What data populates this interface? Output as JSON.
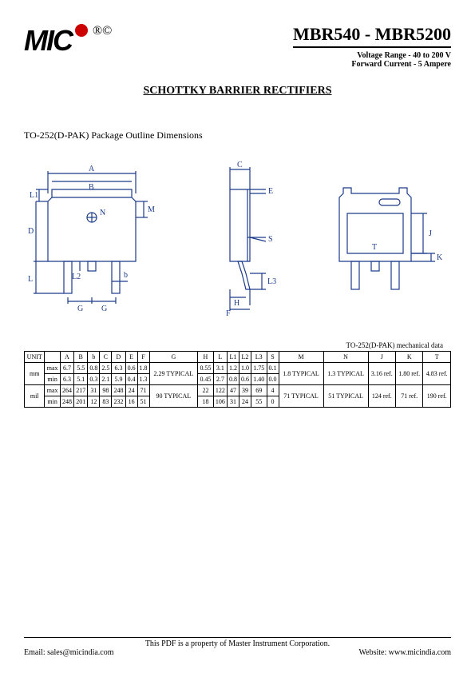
{
  "header": {
    "logo_text": "MIC",
    "reg_marks": "®©",
    "part_range": "MBR540 - MBR5200",
    "voltage_line": "Voltage Range - 40 to 200 V",
    "current_line": "Forward Current - 5 Ampere"
  },
  "section_title": "SCHOTTKY BARRIER RECTIFIERS",
  "pkg_label": "TO-252(D-PAK) Package Outline Dimensions",
  "diagram_labels": {
    "front": [
      "A",
      "B",
      "L1",
      "N",
      "M",
      "D",
      "L",
      "L2",
      "b",
      "G",
      "G"
    ],
    "side": [
      "C",
      "E",
      "S",
      "L3",
      "H",
      "F"
    ],
    "back": [
      "J",
      "T",
      "K"
    ]
  },
  "diagram_color": "#1a3a8a",
  "table": {
    "caption": "TO-252(D-PAK) mechanical data",
    "columns": [
      "UNIT",
      "",
      "A",
      "B",
      "b",
      "C",
      "D",
      "E",
      "F",
      "G",
      "H",
      "L",
      "L1",
      "L2",
      "L3",
      "S",
      "M",
      "N",
      "J",
      "K",
      "T"
    ],
    "rows": [
      [
        "mm",
        "max",
        "6.7",
        "5.5",
        "0.8",
        "2.5",
        "6.3",
        "0.6",
        "1.8",
        "2.29 TYPICAL",
        "0.55",
        "3.1",
        "1.2",
        "1.0",
        "1.75",
        "0.1",
        "1.8 TYPICAL",
        "1.3 TYPICAL",
        "3.16 ref.",
        "1.80 ref.",
        "4.83 ref."
      ],
      [
        "mm",
        "min",
        "6.3",
        "5.1",
        "0.3",
        "2.1",
        "5.9",
        "0.4",
        "1.3",
        "",
        "0.45",
        "2.7",
        "0.8",
        "0.6",
        "1.40",
        "0.0",
        "",
        "",
        "",
        "",
        ""
      ],
      [
        "mil",
        "max",
        "264",
        "217",
        "31",
        "98",
        "248",
        "24",
        "71",
        "90 TYPICAL",
        "22",
        "122",
        "47",
        "39",
        "69",
        "4",
        "71 TYPICAL",
        "51 TYPICAL",
        "124 ref.",
        "71 ref.",
        "190 ref."
      ],
      [
        "mil",
        "min",
        "248",
        "201",
        "12",
        "83",
        "232",
        "16",
        "51",
        "",
        "18",
        "106",
        "31",
        "24",
        "55",
        "0",
        "",
        "",
        "",
        "",
        ""
      ]
    ]
  },
  "footer": {
    "owner": "This PDF is a property of Master Instrument Corporation.",
    "email": "Email: sales@micindia.com",
    "website": "Website: www.micindia.com"
  }
}
